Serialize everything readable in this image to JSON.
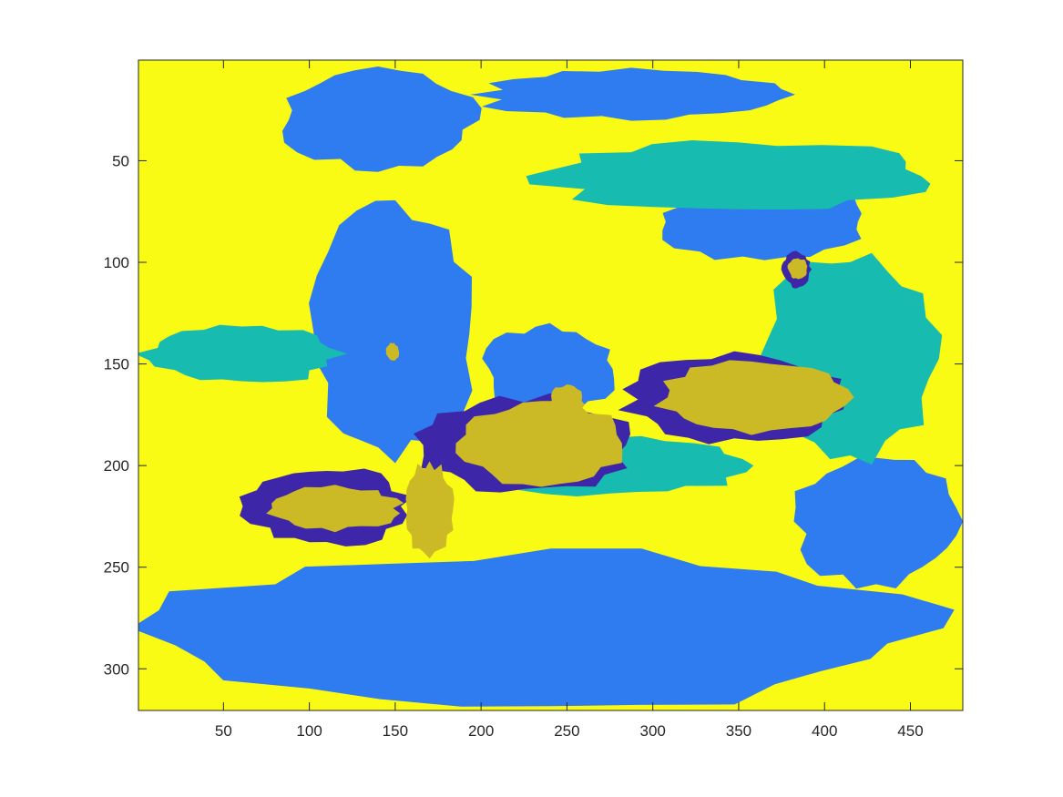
{
  "chart_data": {
    "type": "heatmap",
    "title": "",
    "xlabel": "",
    "ylabel": "",
    "xlim": [
      0.5,
      480.5
    ],
    "ylim": [
      0.5,
      320.5
    ],
    "y_direction": "reverse",
    "grid": false,
    "legend": "none",
    "x_ticks": [
      50,
      100,
      150,
      200,
      250,
      300,
      350,
      400,
      450
    ],
    "y_ticks": [
      50,
      100,
      150,
      200,
      250,
      300
    ],
    "x_tick_labels": [
      "50",
      "100",
      "150",
      "200",
      "250",
      "300",
      "350",
      "400",
      "450"
    ],
    "y_tick_labels": [
      "50",
      "100",
      "150",
      "200",
      "250",
      "300"
    ],
    "class_colors": [
      "#3E26A8",
      "#2F7BF0",
      "#17BBB0",
      "#CBB925",
      "#F9FB15"
    ],
    "approx_regions": [
      {
        "class": 4,
        "x_range": [
          1,
          480
        ],
        "y_range": [
          1,
          320
        ]
      },
      {
        "class": 1,
        "x_range": [
          80,
          200
        ],
        "y_range": [
          5,
          55
        ]
      },
      {
        "class": 1,
        "x_range": [
          195,
          380
        ],
        "y_range": [
          5,
          30
        ]
      },
      {
        "class": 1,
        "x_range": [
          100,
          200
        ],
        "y_range": [
          70,
          200
        ]
      },
      {
        "class": 1,
        "x_range": [
          200,
          280
        ],
        "y_range": [
          130,
          175
        ]
      },
      {
        "class": 1,
        "x_range": [
          1,
          480
        ],
        "y_range": [
          240,
          320
        ]
      },
      {
        "class": 1,
        "x_range": [
          380,
          480
        ],
        "y_range": [
          195,
          260
        ]
      },
      {
        "class": 1,
        "x_range": [
          300,
          430
        ],
        "y_range": [
          60,
          100
        ]
      },
      {
        "class": 2,
        "x_range": [
          230,
          470
        ],
        "y_range": [
          40,
          75
        ]
      },
      {
        "class": 2,
        "x_range": [
          360,
          470
        ],
        "y_range": [
          95,
          200
        ]
      },
      {
        "class": 2,
        "x_range": [
          190,
          360
        ],
        "y_range": [
          185,
          215
        ]
      },
      {
        "class": 2,
        "x_range": [
          1,
          120
        ],
        "y_range": [
          130,
          160
        ]
      },
      {
        "class": 0,
        "x_range": [
          60,
          160
        ],
        "y_range": [
          200,
          240
        ]
      },
      {
        "class": 0,
        "x_range": [
          160,
          290
        ],
        "y_range": [
          165,
          215
        ]
      },
      {
        "class": 0,
        "x_range": [
          280,
          415
        ],
        "y_range": [
          145,
          190
        ]
      },
      {
        "class": 0,
        "x_range": [
          375,
          392
        ],
        "y_range": [
          95,
          112
        ]
      },
      {
        "class": 3,
        "x_range": [
          75,
          155
        ],
        "y_range": [
          210,
          232
        ]
      },
      {
        "class": 3,
        "x_range": [
          155,
          185
        ],
        "y_range": [
          198,
          245
        ]
      },
      {
        "class": 3,
        "x_range": [
          185,
          285
        ],
        "y_range": [
          168,
          210
        ]
      },
      {
        "class": 3,
        "x_range": [
          240,
          260
        ],
        "y_range": [
          160,
          180
        ]
      },
      {
        "class": 3,
        "x_range": [
          300,
          415
        ],
        "y_range": [
          148,
          185
        ]
      },
      {
        "class": 3,
        "x_range": [
          379,
          390
        ],
        "y_range": [
          98,
          108
        ]
      },
      {
        "class": 3,
        "x_range": [
          145,
          152
        ],
        "y_range": [
          140,
          148
        ]
      }
    ]
  }
}
